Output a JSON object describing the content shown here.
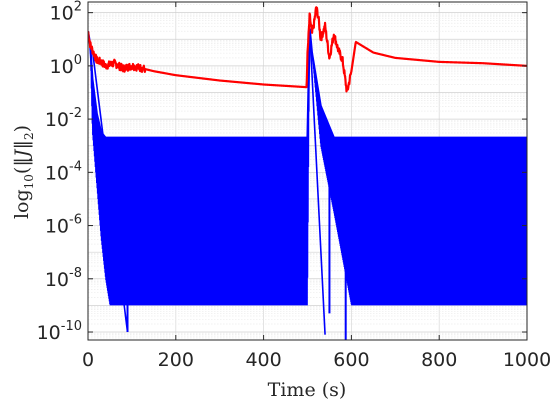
{
  "chart_data": {
    "type": "line",
    "title": "",
    "xlabel": "Time (s)",
    "ylabel": "log10(||J||2)",
    "ylabel_parts": {
      "prefix": "log",
      "sub": "10",
      "open": "(‖",
      "var": "J",
      "close": "‖",
      "sub2": "2",
      "end": ")"
    },
    "xlim": [
      0,
      1000
    ],
    "ylim_log10": [
      -10.3,
      2.4
    ],
    "yscale": "log",
    "grid": true,
    "legend": "none",
    "x_ticks": [
      "0",
      "200",
      "400",
      "600",
      "800",
      "1000"
    ],
    "y_ticks": [
      {
        "base": "10",
        "exp": "2"
      },
      {
        "base": "10",
        "exp": "0"
      },
      {
        "base": "10",
        "exp": "-2"
      },
      {
        "base": "10",
        "exp": "-4"
      },
      {
        "base": "10",
        "exp": "-6"
      },
      {
        "base": "10",
        "exp": "-8"
      },
      {
        "base": "10",
        "exp": "-10"
      }
    ],
    "series": [
      {
        "color": "#ff0000",
        "x": [
          0,
          5,
          10,
          20,
          30,
          40,
          60,
          80,
          100,
          150,
          200,
          300,
          400,
          498,
          500,
          505,
          510,
          515,
          520,
          525,
          530,
          540,
          550,
          560,
          570,
          580,
          590,
          600,
          610,
          650,
          700,
          800,
          900,
          1000
        ],
        "log10": [
          1.3,
          0.8,
          0.6,
          0.2,
          0.15,
          0.0,
          0.1,
          -0.1,
          0.0,
          -0.2,
          -0.35,
          -0.55,
          -0.7,
          -0.8,
          0.4,
          1.9,
          1.2,
          1.6,
          2.2,
          1.8,
          1.0,
          1.5,
          0.3,
          1.2,
          0.6,
          0.2,
          -1.0,
          -0.2,
          0.9,
          0.5,
          0.3,
          0.15,
          0.1,
          0.0
        ],
        "noise": 0.28,
        "noise_ranges": [
          [
            0,
            130
          ],
          [
            500,
            600
          ]
        ]
      },
      {
        "color": "#0000ff",
        "x": [
          0,
          5,
          10,
          20,
          30,
          40,
          50,
          70,
          100,
          500,
          505,
          510,
          530,
          560,
          600,
          1000
        ],
        "log10": [
          1.3,
          0.8,
          -0.5,
          -1.8,
          -2.5,
          -3.0,
          -3.0,
          -3.0,
          -3.0,
          -3.0,
          1.4,
          0.5,
          -1.5,
          -2.8,
          -3.0,
          -3.0
        ],
        "band_low": [
          1.3,
          0.8,
          -2.5,
          -4.5,
          -6.5,
          -8.0,
          -9.0,
          -9.0,
          -9.0,
          -9.0,
          1.4,
          0.5,
          -3.0,
          -5.5,
          -9.0,
          -9.0
        ],
        "band_high": [
          1.3,
          0.8,
          -0.5,
          -1.8,
          -2.5,
          -2.7,
          -2.7,
          -2.7,
          -2.7,
          -2.7,
          1.4,
          0.5,
          -1.5,
          -2.7,
          -2.7,
          -2.7
        ],
        "dips": [
          {
            "x": 40,
            "log10": -6.8
          },
          {
            "x": 50,
            "log10": -7.5
          },
          {
            "x": 90,
            "log10": -10.0
          },
          {
            "x": 550,
            "log10": -9.3
          },
          {
            "x": 587,
            "log10": -10.3
          }
        ]
      }
    ]
  }
}
